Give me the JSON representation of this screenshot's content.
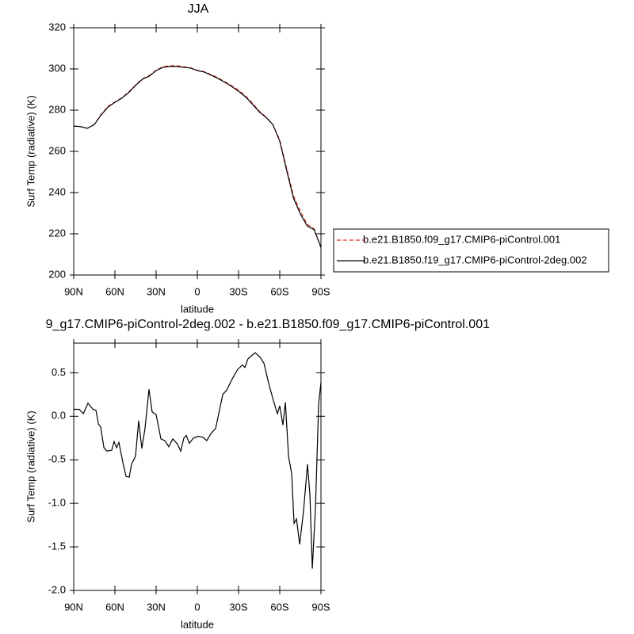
{
  "chart_data": [
    {
      "type": "line",
      "title": "JJA",
      "xlabel": "latitude",
      "ylabel": "Surf Temp (radiative) (K)",
      "x": [
        90,
        85,
        80,
        75,
        70,
        65,
        60,
        55,
        50,
        45,
        40,
        35,
        30,
        25,
        20,
        15,
        10,
        5,
        0,
        -5,
        -10,
        -15,
        -20,
        -25,
        -30,
        -35,
        -40,
        -45,
        -50,
        -55,
        -60,
        -65,
        -70,
        -75,
        -80,
        -85,
        -90
      ],
      "series": [
        {
          "name": "b.e21.B1850.f09_g17.CMIP6-piControl.001",
          "color": "#e0302a",
          "line_style": "dashed",
          "values": [
            272.2,
            272,
            271.2,
            273,
            278,
            281.8,
            284,
            286,
            288.8,
            292.2,
            295.2,
            296.8,
            299.4,
            301.1,
            301.6,
            301.6,
            301.1,
            300.6,
            299.4,
            298.7,
            297.3,
            295.7,
            293.8,
            291.9,
            289.7,
            287,
            283.5,
            279.6,
            276.7,
            273,
            265.5,
            251.8,
            238.5,
            231,
            224.6,
            222.5,
            213.2
          ]
        },
        {
          "name": "b.e21.B1850.f19_g17.CMIP6-piControl-2deg.002",
          "color": "#000000",
          "line_style": "solid",
          "values": [
            272.3,
            272,
            271.2,
            273,
            277.7,
            281.5,
            283.8,
            285.8,
            288.5,
            292,
            295,
            296.5,
            299.2,
            300.8,
            301.2,
            301.2,
            300.8,
            300.4,
            299.2,
            298.5,
            297,
            295.4,
            293.5,
            291.5,
            289.2,
            286.5,
            283,
            279.2,
            276.5,
            273,
            265,
            250.8,
            237.3,
            229.6,
            223.8,
            222,
            213.5
          ]
        }
      ],
      "xlim": [
        90,
        -90
      ],
      "xticks": [
        {
          "value": 90,
          "label": "90N"
        },
        {
          "value": 60,
          "label": "60N"
        },
        {
          "value": 30,
          "label": "30N"
        },
        0,
        {
          "value": -30,
          "label": "30S"
        },
        {
          "value": -60,
          "label": "60S"
        },
        {
          "value": -90,
          "label": "90S"
        }
      ],
      "ylim": [
        200,
        320
      ],
      "yticks": [
        200,
        220,
        240,
        260,
        280,
        300,
        320
      ],
      "legend": "right"
    },
    {
      "type": "line",
      "title": "9_g17.CMIP6-piControl-2deg.002 - b.e21.B1850.f09_g17.CMIP6-piControl.001",
      "xlabel": "latitude",
      "ylabel": "Surf Temp (radiative) (K)",
      "x": [
        90,
        86,
        83,
        79.6,
        76,
        73.8,
        72,
        70.4,
        68,
        65.8,
        62.3,
        60.6,
        58.8,
        57.1,
        54.2,
        51.9,
        49.6,
        47.9,
        45,
        42.7,
        40.4,
        38.1,
        35.2,
        32.9,
        30,
        26.5,
        23.6,
        20.8,
        17.9,
        14.4,
        12.1,
        9.8,
        8.1,
        5.8,
        2.9,
        -0.6,
        -4.1,
        -6.9,
        -9.8,
        -13.3,
        -15.6,
        -18.5,
        -21.4,
        -25.4,
        -29.4,
        -32.9,
        -34.6,
        -36.9,
        -39.8,
        -42.1,
        -45.6,
        -48.5,
        -51.9,
        -55.4,
        -58.3,
        -60,
        -62.3,
        -64.1,
        -66.4,
        -68.7,
        -70.4,
        -72.2,
        -74.5,
        -77.3,
        -80.2,
        -82,
        -83.7,
        -86,
        -88.3,
        -90
      ],
      "series": [
        {
          "color": "#000000",
          "line_style": "solid",
          "values": [
            0.08,
            0.08,
            0.03,
            0.15,
            0.08,
            0.07,
            -0.09,
            -0.12,
            -0.36,
            -0.4,
            -0.39,
            -0.29,
            -0.36,
            -0.3,
            -0.53,
            -0.69,
            -0.7,
            -0.55,
            -0.46,
            -0.05,
            -0.37,
            -0.14,
            0.31,
            0.05,
            0.02,
            -0.26,
            -0.28,
            -0.35,
            -0.26,
            -0.32,
            -0.4,
            -0.25,
            -0.22,
            -0.31,
            -0.25,
            -0.23,
            -0.24,
            -0.28,
            -0.2,
            -0.14,
            0.03,
            0.25,
            0.3,
            0.43,
            0.54,
            0.59,
            0.56,
            0.66,
            0.7,
            0.73,
            0.68,
            0.61,
            0.38,
            0.18,
            0.03,
            0.12,
            -0.1,
            0.16,
            -0.46,
            -0.66,
            -1.23,
            -1.18,
            -1.47,
            -1.09,
            -0.55,
            -0.91,
            -1.75,
            -1.05,
            0.14,
            0.39
          ]
        }
      ],
      "xlim": [
        90,
        -90
      ],
      "xticks": [
        {
          "value": 90,
          "label": "90N"
        },
        {
          "value": 60,
          "label": "60N"
        },
        {
          "value": 30,
          "label": "30N"
        },
        0,
        {
          "value": -30,
          "label": "30S"
        },
        {
          "value": -60,
          "label": "60S"
        },
        {
          "value": -90,
          "label": "90S"
        }
      ],
      "ylim": [
        -2.0,
        0.84
      ],
      "yticks": [
        {
          "value": -2.0,
          "label": "-2.0"
        },
        -1.5,
        {
          "value": -1.0,
          "label": "-1.0"
        },
        -0.5,
        {
          "value": 0.0,
          "label": "0.0"
        },
        0.5
      ]
    }
  ]
}
